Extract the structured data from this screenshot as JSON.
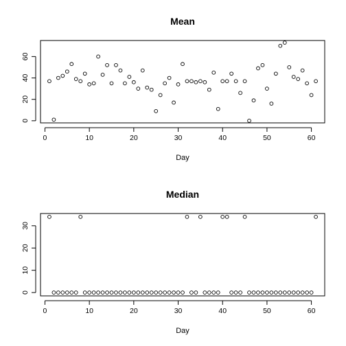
{
  "chart_data": [
    {
      "type": "scatter",
      "title": "Mean",
      "xlabel": "Day",
      "ylabel": "",
      "xlim": [
        -1,
        63
      ],
      "ylim": [
        -2,
        75
      ],
      "xticks": [
        0,
        10,
        20,
        30,
        40,
        50,
        60
      ],
      "yticks": [
        0,
        20,
        40,
        60
      ],
      "grid": false,
      "x": [
        1,
        2,
        3,
        4,
        5,
        6,
        7,
        8,
        9,
        10,
        11,
        12,
        13,
        14,
        15,
        16,
        17,
        18,
        19,
        20,
        21,
        22,
        23,
        24,
        25,
        26,
        27,
        28,
        29,
        30,
        31,
        32,
        33,
        34,
        35,
        36,
        37,
        38,
        39,
        40,
        41,
        42,
        43,
        44,
        45,
        46,
        47,
        48,
        49,
        50,
        51,
        52,
        53,
        54,
        55,
        56,
        57,
        58,
        59,
        60,
        61
      ],
      "y": [
        37,
        1,
        40,
        42,
        46,
        53,
        39,
        37,
        44,
        34,
        35,
        60,
        43,
        52,
        35,
        52,
        47,
        35,
        41,
        36,
        30,
        47,
        31,
        29,
        9,
        24,
        35,
        40,
        17,
        34,
        53,
        37,
        37,
        36,
        37,
        36,
        29,
        45,
        11,
        37,
        37,
        44,
        37,
        26,
        37,
        0,
        19,
        49,
        52,
        30,
        16,
        44,
        70,
        73,
        50,
        41,
        39,
        47,
        35,
        24,
        37
      ]
    },
    {
      "type": "scatter",
      "title": "Median",
      "xlabel": "Day",
      "ylabel": "",
      "xlim": [
        -1,
        63
      ],
      "ylim": [
        -1.5,
        35.5
      ],
      "xticks": [
        0,
        10,
        20,
        30,
        40,
        50,
        60
      ],
      "yticks": [
        0,
        10,
        20,
        30
      ],
      "grid": false,
      "x": [
        1,
        2,
        3,
        4,
        5,
        6,
        7,
        8,
        9,
        10,
        11,
        12,
        13,
        14,
        15,
        16,
        17,
        18,
        19,
        20,
        21,
        22,
        23,
        24,
        25,
        26,
        27,
        28,
        29,
        30,
        31,
        32,
        33,
        34,
        35,
        36,
        37,
        38,
        39,
        40,
        41,
        42,
        43,
        44,
        45,
        46,
        47,
        48,
        49,
        50,
        51,
        52,
        53,
        54,
        55,
        56,
        57,
        58,
        59,
        60,
        61
      ],
      "y": [
        34,
        0,
        0,
        0,
        0,
        0,
        0,
        34,
        0,
        0,
        0,
        0,
        0,
        0,
        0,
        0,
        0,
        0,
        0,
        0,
        0,
        0,
        0,
        0,
        0,
        0,
        0,
        0,
        0,
        0,
        0,
        34,
        0,
        0,
        34,
        0,
        0,
        0,
        0,
        34,
        34,
        0,
        0,
        0,
        34,
        0,
        0,
        0,
        0,
        0,
        0,
        0,
        0,
        0,
        0,
        0,
        0,
        0,
        0,
        0,
        34
      ]
    }
  ]
}
